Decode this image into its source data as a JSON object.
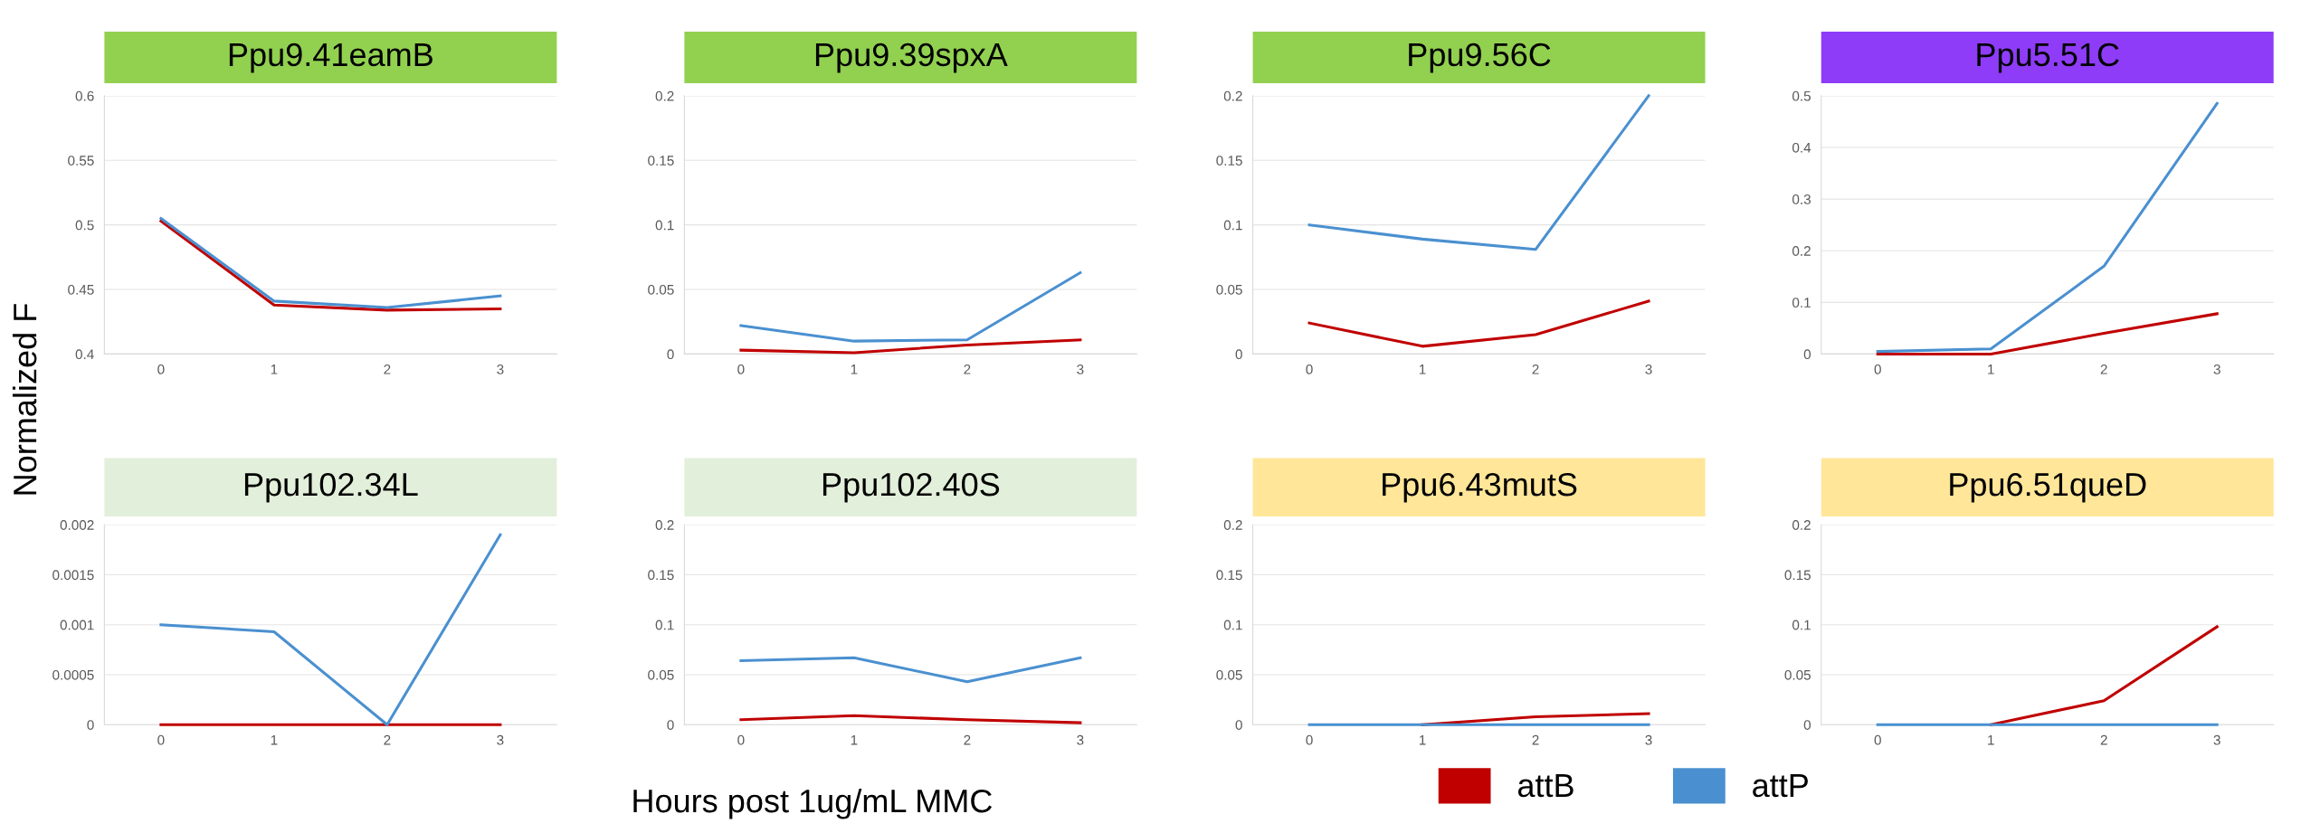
{
  "chart_data": [
    {
      "type": "line",
      "title": "Ppu9.41eamB",
      "ylabel": "Normalized F",
      "xlabel": "Hours post 1ug/mL MMC",
      "categories": [
        "0",
        "1",
        "2",
        "3"
      ],
      "ylim": [
        0.4,
        0.6
      ],
      "yticks": [
        0.4,
        0.45,
        0.5,
        0.55,
        0.6
      ],
      "grid": "y",
      "legend": "bottom",
      "series": [
        {
          "name": "attB",
          "color": "#c00000",
          "values": [
            0.503,
            0.438,
            0.434,
            0.435
          ]
        },
        {
          "name": "attP",
          "color": "#4a90d0",
          "values": [
            0.505,
            0.441,
            0.436,
            0.445
          ]
        }
      ]
    },
    {
      "type": "line",
      "title": "Ppu9.39spxA",
      "categories": [
        "0",
        "1",
        "2",
        "3"
      ],
      "ylim": [
        0,
        0.2
      ],
      "yticks": [
        0,
        0.05,
        0.1,
        0.15,
        0.2
      ],
      "grid": "y",
      "series": [
        {
          "color": "#c00000",
          "values": [
            0.003,
            0.001,
            0.007,
            0.011
          ]
        },
        {
          "color": "#4a90d0",
          "values": [
            0.022,
            0.01,
            0.011,
            0.063
          ]
        }
      ]
    },
    {
      "type": "line",
      "title": "Ppu9.56C",
      "categories": [
        "0",
        "1",
        "2",
        "3"
      ],
      "ylim": [
        0,
        0.2
      ],
      "yticks": [
        0,
        0.05,
        0.1,
        0.15,
        0.2
      ],
      "grid": "y",
      "series": [
        {
          "color": "#c00000",
          "values": [
            0.024,
            0.006,
            0.015,
            0.041
          ]
        },
        {
          "color": "#4a90d0",
          "values": [
            0.1,
            0.089,
            0.081,
            0.2
          ]
        }
      ]
    },
    {
      "type": "line",
      "title": "Ppu5.51C",
      "categories": [
        "0",
        "1",
        "2",
        "3"
      ],
      "ylim": [
        0,
        0.5
      ],
      "yticks": [
        0,
        0.1,
        0.2,
        0.3,
        0.4,
        0.5
      ],
      "grid": "y",
      "series": [
        {
          "color": "#c00000",
          "values": [
            0,
            0,
            0.04,
            0.078
          ]
        },
        {
          "color": "#4a90d0",
          "values": [
            0.005,
            0.01,
            0.17,
            0.485
          ]
        }
      ]
    },
    {
      "type": "line",
      "title": "Ppu102.34L",
      "categories": [
        "0",
        "1",
        "2",
        "3"
      ],
      "ylim": [
        0,
        0.002
      ],
      "yticks": [
        0,
        0.0005,
        0.001,
        0.0015,
        0.002
      ],
      "grid": "y",
      "series": [
        {
          "color": "#c00000",
          "values": [
            0,
            0,
            0,
            0
          ]
        },
        {
          "color": "#4a90d0",
          "values": [
            0.001,
            0.00093,
            0,
            0.0019
          ]
        }
      ]
    },
    {
      "type": "line",
      "title": "Ppu102.40S",
      "categories": [
        "0",
        "1",
        "2",
        "3"
      ],
      "ylim": [
        0,
        0.2
      ],
      "yticks": [
        0,
        0.05,
        0.1,
        0.15,
        0.2
      ],
      "grid": "y",
      "series": [
        {
          "color": "#c00000",
          "values": [
            0.005,
            0.009,
            0.005,
            0.002
          ]
        },
        {
          "color": "#4a90d0",
          "values": [
            0.064,
            0.067,
            0.043,
            0.067
          ]
        }
      ]
    },
    {
      "type": "line",
      "title": "Ppu6.43mutS",
      "categories": [
        "0",
        "1",
        "2",
        "3"
      ],
      "ylim": [
        0,
        0.2
      ],
      "yticks": [
        0,
        0.05,
        0.1,
        0.15,
        0.2
      ],
      "grid": "y",
      "series": [
        {
          "color": "#c00000",
          "values": [
            null,
            0,
            0.008,
            0.011
          ]
        },
        {
          "color": "#4a90d0",
          "values": [
            0,
            0,
            0,
            0
          ]
        }
      ]
    },
    {
      "type": "line",
      "title": "Ppu6.51queD",
      "categories": [
        "0",
        "1",
        "2",
        "3"
      ],
      "ylim": [
        0,
        0.2
      ],
      "yticks": [
        0,
        0.05,
        0.1,
        0.15,
        0.2
      ],
      "grid": "y",
      "series": [
        {
          "color": "#c00000",
          "values": [
            null,
            0,
            0.024,
            0.098
          ]
        },
        {
          "color": "#4a90d0",
          "values": [
            0,
            0,
            0,
            0
          ]
        }
      ]
    }
  ]
}
